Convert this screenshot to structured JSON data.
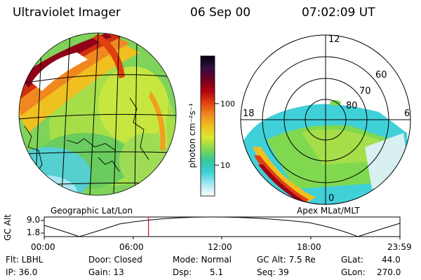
{
  "header": {
    "instrument": "Ultraviolet Imager",
    "date": "06 Sep 00",
    "time": "07:02:09 UT"
  },
  "left_panel": {
    "caption": "Geographic Lat/Lon"
  },
  "right_panel": {
    "caption": "Apex MLat/MLT",
    "mlt_labels": {
      "top": "12",
      "left": "18",
      "right": "6",
      "bottom": "0"
    },
    "lat_labels": [
      "60",
      "70",
      "80"
    ]
  },
  "colorbar": {
    "unit_label": "photon cm⁻²s⁻¹",
    "ticks": [
      "100",
      "10"
    ],
    "colors": [
      "#ffffff",
      "#a8e8f0",
      "#40d0d8",
      "#30c8a0",
      "#80d850",
      "#d8e830",
      "#f0c020",
      "#f08820",
      "#e04010",
      "#b00010",
      "#700020",
      "#301040",
      "#000010"
    ]
  },
  "altitude_strip": {
    "axis_label": "GC Alt",
    "y_ticks": [
      "9.0",
      "1.8"
    ],
    "time_ticks": [
      "00:00",
      "06:00",
      "12:00",
      "18:00",
      "23:59"
    ],
    "current_time_fraction": 0.2931
  },
  "info": {
    "filter": "Flt: LBHL",
    "ip": "IP: 36.0",
    "door": "Door: Closed",
    "gain": "Gain: 13",
    "mode": "Mode: Normal",
    "dsp_label": "Dsp:",
    "dsp_value": "5.1",
    "gc_alt": "GC Alt: 7.5 Re",
    "seq": "Seq: 39",
    "glat_label": "GLat:",
    "glat_value": "44.0",
    "glon_label": "GLon:",
    "glon_value": "270.0"
  }
}
